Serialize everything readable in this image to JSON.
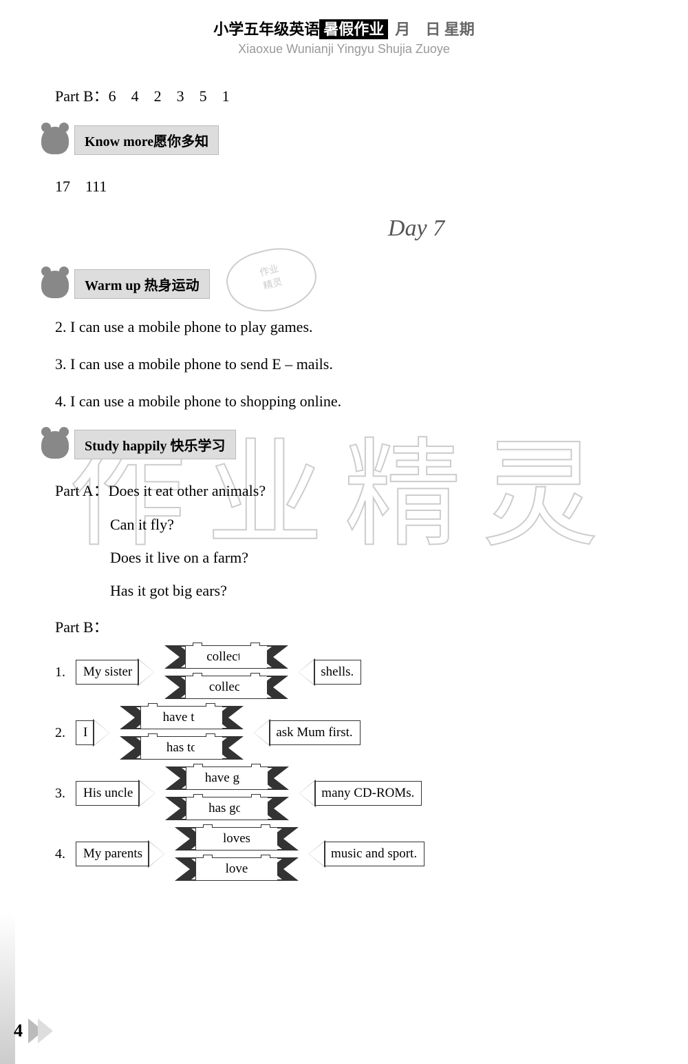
{
  "header": {
    "title_cn": "小学五年级英语",
    "title_black": "暑假作业",
    "title_gray": "月　日 星期",
    "title_pinyin": "Xiaoxue Wunianji Yingyu Shujia Zuoye"
  },
  "part_b_top": "Part B：6　4　2　3　5　1",
  "section_know_more": "Know more愿你多知",
  "know_more_answer": "17　111",
  "stamp_text": "作业精灵",
  "day_title": "Day 7",
  "section_warmup": "Warm up 热身运动",
  "warmup": [
    "2. I can use a mobile phone to play games.",
    "3. I can use a mobile phone to send E – mails.",
    "4. I can use a mobile phone to shopping online."
  ],
  "section_study": "Study happily 快乐学习",
  "part_a_label": "Part A：",
  "part_a": [
    "Does it eat other animals?",
    "Can it fly?",
    "Does it live on a farm?",
    "Has it got big ears?"
  ],
  "part_b_label": "Part B：",
  "part_b_rows": [
    {
      "num": "1.",
      "subject": "My sister",
      "opt1": "collects",
      "opt2": "collect",
      "object": "shells."
    },
    {
      "num": "2.",
      "subject": "I",
      "opt1": "have to",
      "opt2": "has to",
      "object": "ask Mum first."
    },
    {
      "num": "3.",
      "subject": "His uncle",
      "opt1": "have got",
      "opt2": "has got",
      "object": "many CD-ROMs."
    },
    {
      "num": "4.",
      "subject": "My parents",
      "opt1": "loves",
      "opt2": "love",
      "object": "music and sport."
    }
  ],
  "watermark": "作业精灵",
  "page_number": "4",
  "colors": {
    "text": "#000000",
    "gray": "#999999",
    "section_bg": "#dddddd",
    "watermark": "#cccccc"
  }
}
